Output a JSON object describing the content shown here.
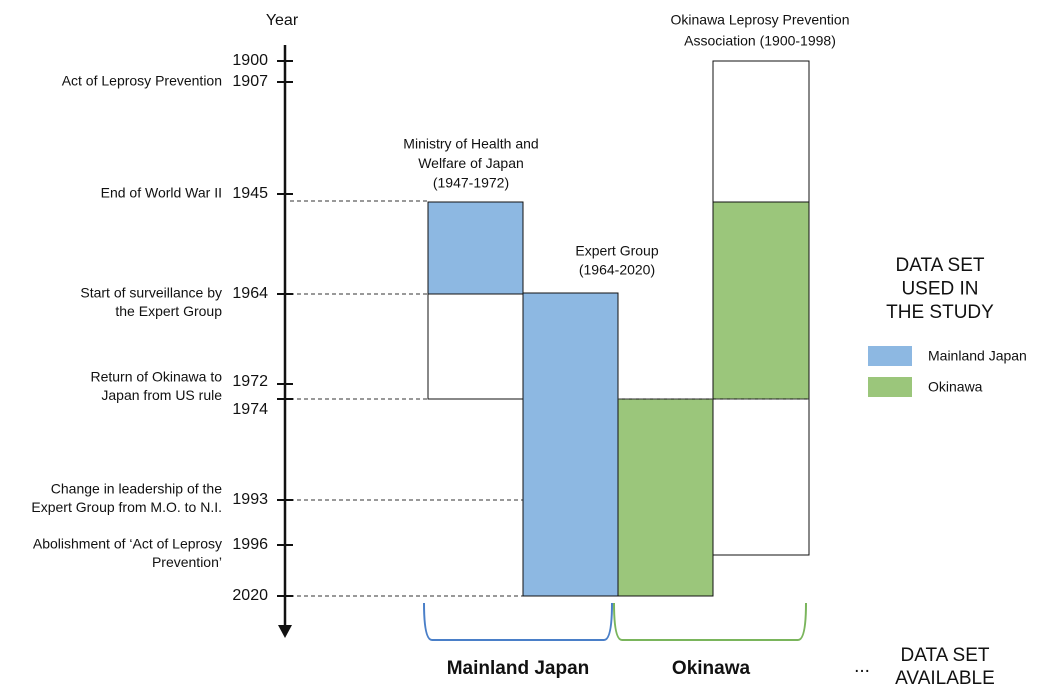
{
  "axis": {
    "label": "Year",
    "ticks": [
      {
        "year": "1900"
      },
      {
        "year": "1907",
        "event": [
          "Act of Leprosy Prevention"
        ]
      },
      {
        "year": "1945",
        "event": [
          "End of World War II"
        ]
      },
      {
        "year": "1964",
        "event": [
          "Start of surveillance by",
          "the Expert Group"
        ]
      },
      {
        "year": "1972",
        "event": [
          "Return of Okinawa to",
          "Japan from US rule"
        ]
      },
      {
        "year": "1974"
      },
      {
        "year": "1993",
        "event": [
          "Change in leadership of the",
          "Expert Group from M.O. to N.I."
        ]
      },
      {
        "year": "1996",
        "event": [
          "Abolishment of ‘Act of Leprosy",
          "Prevention’"
        ]
      },
      {
        "year": "2020"
      }
    ]
  },
  "boxes": [
    {
      "label": [
        "Ministry of Health and",
        "Welfare of Japan",
        "(1947-1972)"
      ]
    },
    {
      "label": [
        "Expert Group",
        "(1964-2020)"
      ]
    },
    {
      "label": [
        "Okinawa Leprosy Prevention",
        "Association (1900-1998)"
      ]
    }
  ],
  "legend": {
    "title": [
      "DATA SET",
      "USED IN",
      "THE STUDY"
    ],
    "items": [
      "Mainland Japan",
      "Okinawa"
    ]
  },
  "footer": {
    "groups": [
      "Mainland Japan",
      "Okinawa"
    ],
    "ellipsis": "...",
    "available": [
      "DATA SET",
      "AVAILABLE"
    ]
  }
}
